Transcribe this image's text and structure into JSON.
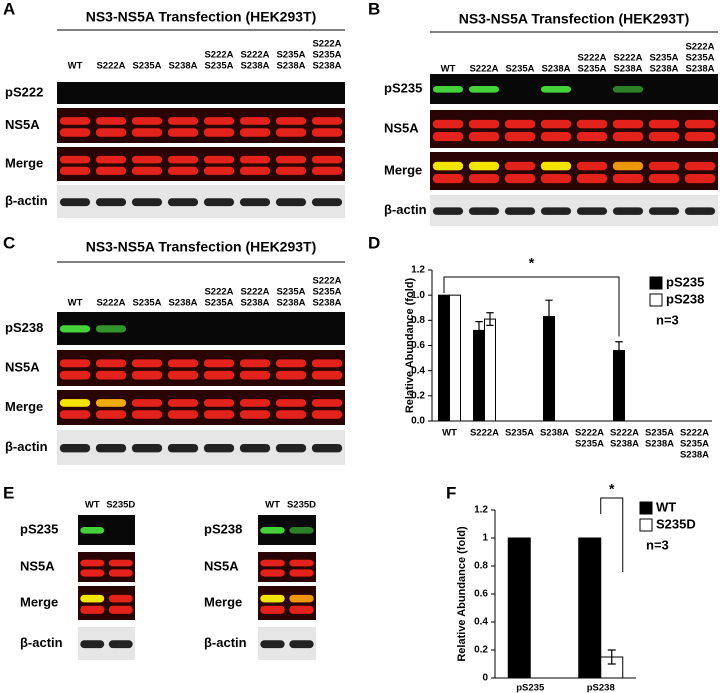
{
  "blots": [
    {
      "letter": "A",
      "title": "NS3-NS5A Transfection (HEK293T)",
      "lanes": [
        [
          "WT"
        ],
        [
          "S222A"
        ],
        [
          "S235A"
        ],
        [
          "S238A"
        ],
        [
          "S222A",
          "S235A"
        ],
        [
          "S222A",
          "S238A"
        ],
        [
          "S235A",
          "S238A"
        ],
        [
          "S222A",
          "S235A",
          "S238A"
        ]
      ],
      "rows": [
        "pS222",
        "NS5A",
        "Merge",
        "β-actin"
      ]
    },
    {
      "letter": "B",
      "title": "NS3-NS5A Transfection (HEK293T)",
      "lanes": [
        [
          "WT"
        ],
        [
          "S222A"
        ],
        [
          "S235A"
        ],
        [
          "S238A"
        ],
        [
          "S222A",
          "S235A"
        ],
        [
          "S222A",
          "S238A"
        ],
        [
          "S235A",
          "S238A"
        ],
        [
          "S222A",
          "S235A",
          "S238A"
        ]
      ],
      "rows": [
        "pS235",
        "NS5A",
        "Merge",
        "β-actin"
      ]
    },
    {
      "letter": "C",
      "title": "NS3-NS5A Transfection (HEK293T)",
      "lanes": [
        [
          "WT"
        ],
        [
          "S222A"
        ],
        [
          "S235A"
        ],
        [
          "S238A"
        ],
        [
          "S222A",
          "S235A"
        ],
        [
          "S222A",
          "S238A"
        ],
        [
          "S235A",
          "S238A"
        ],
        [
          "S222A",
          "S235A",
          "S238A"
        ]
      ],
      "rows": [
        "pS238",
        "NS5A",
        "Merge",
        "β-actin"
      ]
    }
  ],
  "blots_e": {
    "letter": "E",
    "panels": [
      {
        "lanes": [
          [
            "WT"
          ],
          [
            "S235D"
          ]
        ],
        "rows": [
          "pS235",
          "NS5A",
          "Merge",
          "β-actin"
        ]
      },
      {
        "lanes": [
          [
            "WT"
          ],
          [
            "S235D"
          ]
        ],
        "rows": [
          "pS238",
          "NS5A",
          "Merge",
          "β-actin"
        ]
      }
    ]
  },
  "chart_data": [
    {
      "type": "bar",
      "letter": "D",
      "ylabel": "Relative Abundance (fold)",
      "categories": [
        [
          "WT"
        ],
        [
          "S222A"
        ],
        [
          "S235A"
        ],
        [
          "S238A"
        ],
        [
          "S222A",
          "S235A"
        ],
        [
          "S222A",
          "S238A"
        ],
        [
          "S235A",
          "S238A"
        ],
        [
          "S222A",
          "S235A",
          "S238A"
        ]
      ],
      "series": [
        {
          "name": "pS235",
          "color": "#000000",
          "values": [
            1.0,
            0.72,
            0,
            0.83,
            0,
            0.56,
            0,
            0
          ],
          "errors": [
            null,
            0.07,
            null,
            0.13,
            null,
            0.07,
            null,
            null
          ]
        },
        {
          "name": "pS238",
          "color": "#ffffff",
          "values": [
            1.0,
            0.81,
            0,
            0,
            0,
            0,
            0,
            0
          ],
          "errors": [
            null,
            0.05,
            null,
            null,
            null,
            null,
            null,
            null
          ]
        }
      ],
      "ylim": [
        0,
        1.2
      ],
      "yticks": [
        {
          "value": 0,
          "label": "0.0"
        },
        0.2,
        0.4,
        0.6,
        0.8,
        {
          "value": 1,
          "label": "1.0"
        },
        1.2
      ],
      "annotations": [
        "*",
        "n=3"
      ]
    },
    {
      "type": "bar",
      "letter": "F",
      "ylabel": "Relative Abundance (fold)",
      "categories": [
        [
          "pS235"
        ],
        [
          "pS238"
        ]
      ],
      "series": [
        {
          "name": "WT",
          "color": "#000000",
          "values": [
            1,
            1
          ],
          "errors": [
            null,
            null
          ]
        },
        {
          "name": "S235D",
          "color": "#ffffff",
          "values": [
            0,
            0.15
          ],
          "errors": [
            null,
            0.05
          ]
        }
      ],
      "ylim": [
        0,
        1.2
      ],
      "yticks": [
        0,
        0.2,
        0.4,
        0.6,
        0.8,
        1,
        1.2
      ],
      "annotations": [
        "*",
        "n=3"
      ]
    }
  ]
}
